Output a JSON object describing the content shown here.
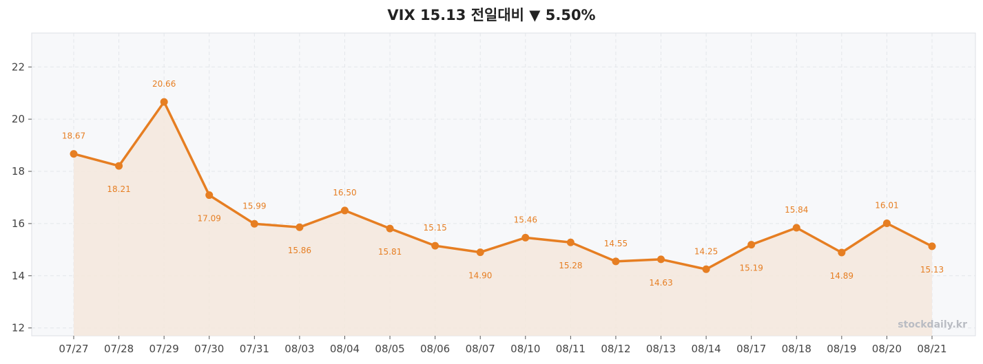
{
  "chart_data": {
    "type": "line",
    "title": "VIX  15.13  전일대비 ▼ 5.50%",
    "categories": [
      "07/27",
      "07/28",
      "07/29",
      "07/30",
      "07/31",
      "08/03",
      "08/04",
      "08/05",
      "08/06",
      "08/07",
      "08/10",
      "08/11",
      "08/12",
      "08/13",
      "08/14",
      "08/17",
      "08/18",
      "08/19",
      "08/20",
      "08/21"
    ],
    "values": [
      18.67,
      18.21,
      20.66,
      17.09,
      15.99,
      15.86,
      16.5,
      15.81,
      15.15,
      14.9,
      15.46,
      15.28,
      14.55,
      14.63,
      14.25,
      15.19,
      15.84,
      14.89,
      16.01,
      15.13
    ],
    "data_labels": [
      "18.67",
      "18.21",
      "20.66",
      "17.09",
      "15.99",
      "15.86",
      "16.50",
      "15.81",
      "15.15",
      "14.90",
      "15.46",
      "15.28",
      "14.55",
      "14.63",
      "14.25",
      "15.19",
      "15.84",
      "14.89",
      "16.01",
      "15.13"
    ],
    "yticks": [
      12,
      14,
      16,
      18,
      20,
      22
    ],
    "ylim": [
      11.7,
      23.3
    ],
    "xlabel": "",
    "ylabel": "",
    "grid": true,
    "line_color": "#e67e22",
    "fill_color": "#f5e8dc",
    "plot_bg": "#f7f8fa",
    "watermark": "stockdaily.kr"
  }
}
